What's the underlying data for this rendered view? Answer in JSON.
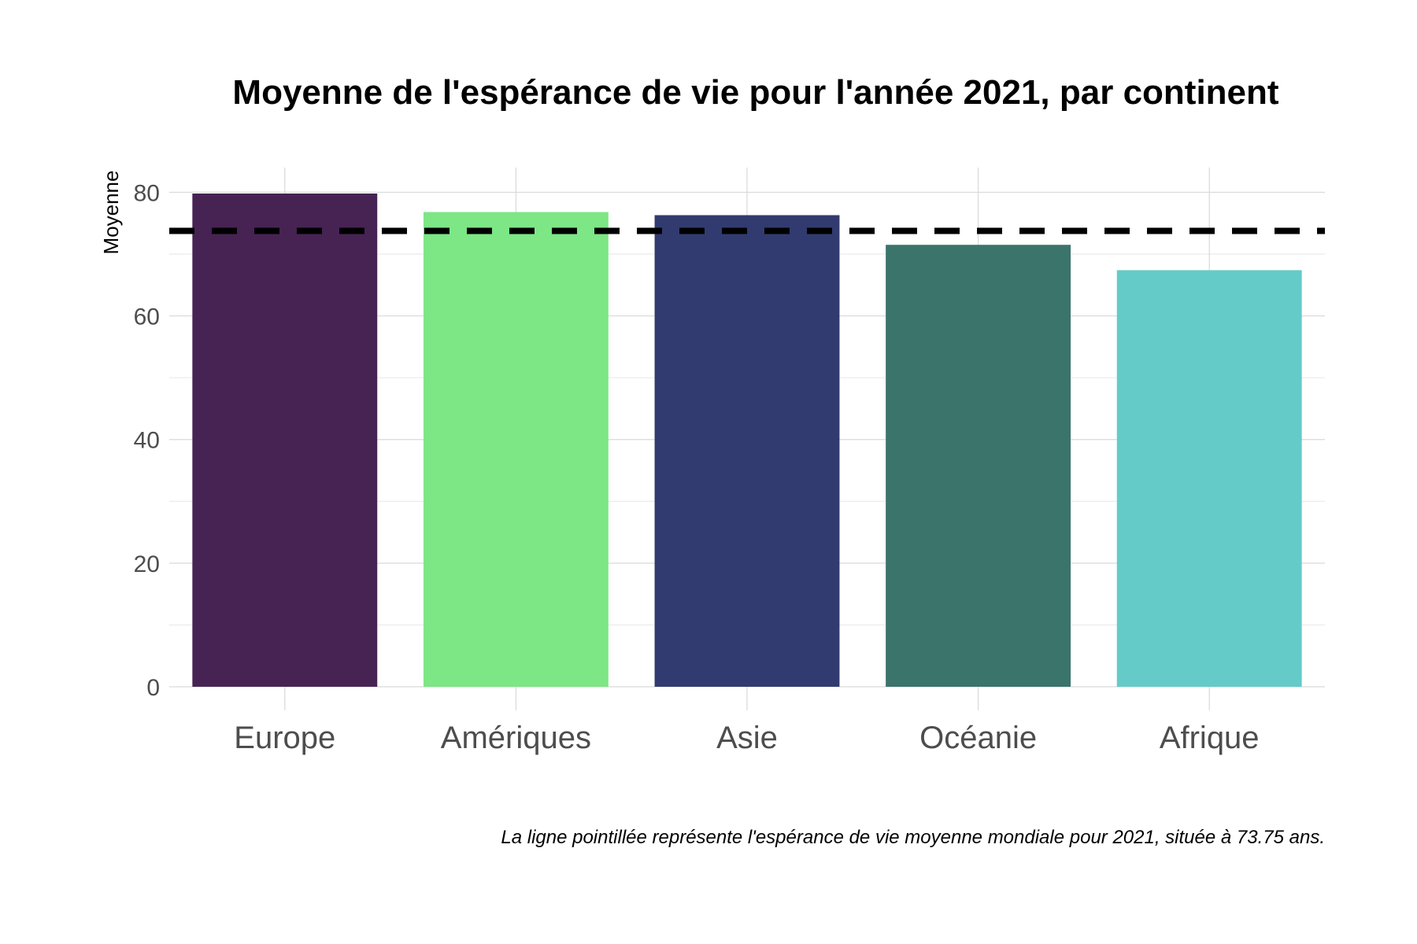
{
  "chart_data": {
    "type": "bar",
    "title": "Moyenne de l'espérance de vie pour l'année 2021, par continent",
    "ylabel": "Moyenne",
    "xlabel": "",
    "categories": [
      "Europe",
      "Amériques",
      "Asie",
      "Océanie",
      "Afrique"
    ],
    "values": [
      79.8,
      76.8,
      76.3,
      71.5,
      67.4
    ],
    "colors": [
      "#472354",
      "#7de685",
      "#323b70",
      "#3a746b",
      "#64cbc9"
    ],
    "ylim": [
      0,
      84
    ],
    "yticks": [
      0,
      20,
      40,
      60,
      80
    ],
    "reference_line": {
      "value": 73.75,
      "style": "dashed",
      "color": "#000000"
    },
    "caption": "La ligne pointillée représente l'espérance de vie moyenne mondiale pour 2021, située à 73.75 ans.",
    "grid": true,
    "legend": "none"
  }
}
